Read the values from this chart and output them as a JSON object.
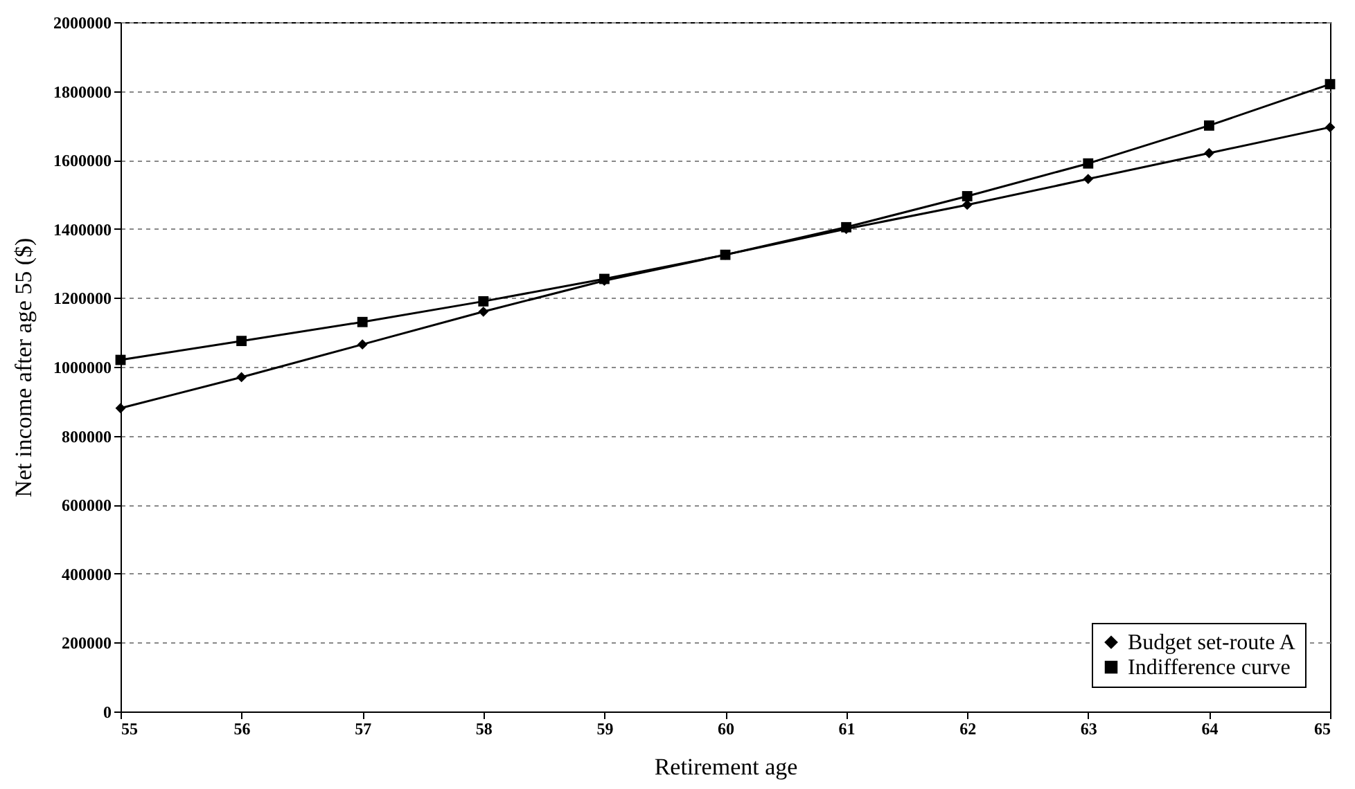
{
  "chart_data": {
    "type": "line",
    "xlabel": "Retirement age",
    "ylabel": "Net income after age 55 ($)",
    "x": [
      55,
      56,
      57,
      58,
      59,
      60,
      61,
      62,
      63,
      64,
      65
    ],
    "series": [
      {
        "name": "Budget set-route A",
        "color": "#000000",
        "marker": "diamond",
        "values": [
          880000,
          970000,
          1065000,
          1160000,
          1250000,
          1325000,
          1400000,
          1470000,
          1545000,
          1620000,
          1695000
        ]
      },
      {
        "name": "Indifference curve",
        "color": "#000000",
        "marker": "square",
        "values": [
          1020000,
          1075000,
          1130000,
          1190000,
          1255000,
          1325000,
          1405000,
          1495000,
          1590000,
          1700000,
          1820000
        ]
      }
    ],
    "xlim": [
      55,
      65
    ],
    "xticks": [
      55,
      56,
      57,
      58,
      59,
      60,
      61,
      62,
      63,
      64,
      65
    ],
    "ylim": [
      0,
      2000000
    ],
    "yticks": [
      0,
      200000,
      400000,
      600000,
      800000,
      1000000,
      1200000,
      1400000,
      1600000,
      1800000,
      2000000
    ],
    "grid": "y",
    "legend": "bottom right",
    "line_style": "solid"
  }
}
